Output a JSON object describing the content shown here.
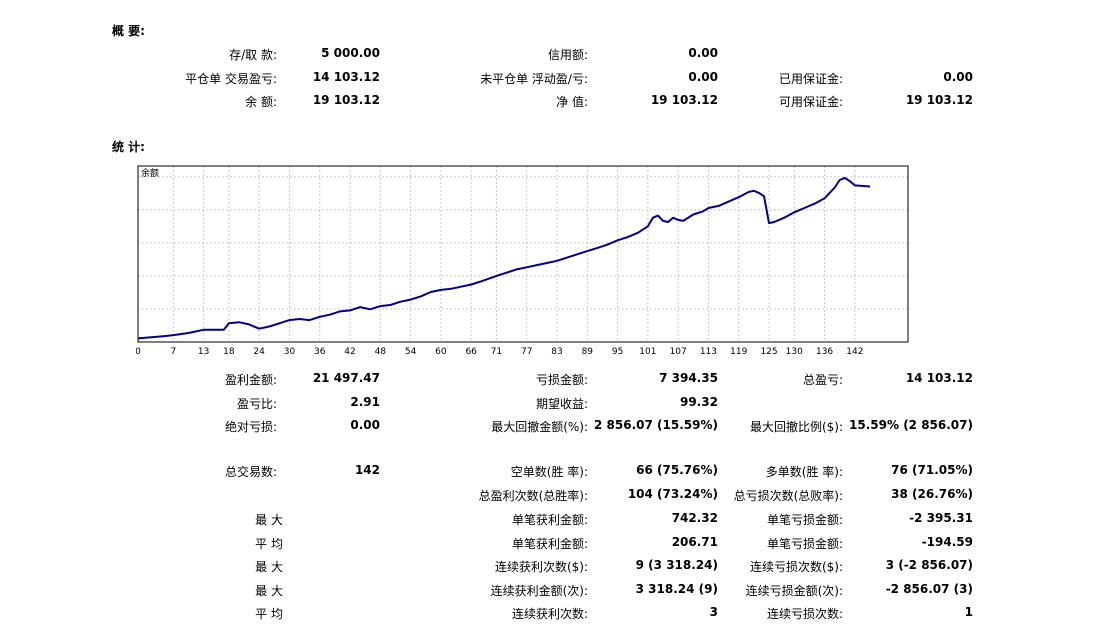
{
  "summary": {
    "title": "概 要:",
    "deposit_label": "存/取 款:",
    "deposit_value": "5 000.00",
    "credit_label": "信用额:",
    "credit_value": "0.00",
    "closed_pl_label": "平仓单 交易盈亏:",
    "closed_pl_value": "14 103.12",
    "floating_pl_label": "未平仓单 浮动盈/亏:",
    "floating_pl_value": "0.00",
    "margin_used_label": "已用保证金:",
    "margin_used_value": "0.00",
    "balance_label": "余 额:",
    "balance_value": "19 103.12",
    "equity_label": "净 值:",
    "equity_value": "19 103.12",
    "free_margin_label": "可用保证金:",
    "free_margin_value": "19 103.12"
  },
  "stats": {
    "title": "统 计:",
    "gross_profit_label": "盈利金额:",
    "gross_profit_value": "21 497.47",
    "gross_loss_label": "亏损金额:",
    "gross_loss_value": "7 394.35",
    "total_net_label": "总盈亏:",
    "total_net_value": "14 103.12",
    "profit_factor_label": "盈亏比:",
    "profit_factor_value": "2.91",
    "expected_payoff_label": "期望收益:",
    "expected_payoff_value": "99.32",
    "abs_drawdown_label": "绝对亏损:",
    "abs_drawdown_value": "0.00",
    "max_drawdown_label": "最大回撤金额(%):",
    "max_drawdown_value": "2 856.07 (15.59%)",
    "rel_drawdown_label": "最大回撤比例($):",
    "rel_drawdown_value": "15.59% (2 856.07)",
    "total_trades_label": "总交易数:",
    "total_trades_value": "142",
    "short_label": "空单数(胜 率):",
    "short_value": "66 (75.76%)",
    "long_label": "多单数(胜 率):",
    "long_value": "76 (71.05%)",
    "profit_trades_label": "总盈利次数(总胜率):",
    "profit_trades_value": "104 (73.24%)",
    "loss_trades_label": "总亏损次数(总败率):",
    "loss_trades_value": "38 (26.76%)",
    "largest_label": "最 大",
    "largest_profit_label": "单笔获利金额:",
    "largest_profit_value": "742.32",
    "largest_loss_label": "单笔亏损金额:",
    "largest_loss_value": "-2 395.31",
    "average_label": "平 均",
    "avg_profit_label": "单笔获利金额:",
    "avg_profit_value": "206.71",
    "avg_loss_label": "单笔亏损金额:",
    "avg_loss_value": "-194.59",
    "max_label": "最 大",
    "max_cons_wins_label": "连续获利次数($):",
    "max_cons_wins_value": "9 (3 318.24)",
    "max_cons_losses_label": "连续亏损次数($):",
    "max_cons_losses_value": "3 (-2 856.07)",
    "max2_label": "最 大",
    "max_cons_profit_label": "连续获利金额(次):",
    "max_cons_profit_value": "3 318.24 (9)",
    "max_cons_loss_label": "连续亏损金额(次):",
    "max_cons_loss_value": "-2 856.07 (3)",
    "average2_label": "平 均",
    "avg_cons_wins_label": "连续获利次数:",
    "avg_cons_wins_value": "3",
    "avg_cons_losses_label": "连续亏损次数:",
    "avg_cons_losses_value": "1"
  },
  "colors": {
    "line": "#00008b",
    "grid": "#c8c8c8",
    "frame": "#000000"
  },
  "chart_data": {
    "type": "line",
    "title": "余额",
    "xlabel": "",
    "ylabel": "",
    "grid": true,
    "xlim": [
      0,
      145
    ],
    "ylim": [
      4263,
      20600
    ],
    "x_ticks": [
      "0",
      "7",
      "13",
      "18",
      "24",
      "30",
      "36",
      "42",
      "48",
      "54",
      "60",
      "66",
      "71",
      "77",
      "83",
      "89",
      "95",
      "101",
      "107",
      "113",
      "119",
      "125",
      "130",
      "136",
      "142"
    ],
    "y_ticks": [
      "4263",
      "7329",
      "10395",
      "13461",
      "16527",
      "19593"
    ],
    "series": [
      {
        "x": [
          0,
          5,
          7,
          10,
          13,
          15,
          17,
          18,
          20,
          22,
          24,
          26,
          28,
          30,
          32,
          34,
          36,
          38,
          40,
          42,
          44,
          46,
          48,
          50,
          52,
          54,
          56,
          58,
          60,
          62,
          64,
          66,
          68,
          71,
          73,
          75,
          77,
          79,
          81,
          83,
          85,
          87,
          89,
          91,
          93,
          95,
          97,
          99,
          101,
          102,
          103,
          104,
          105,
          106,
          107,
          108,
          110,
          112,
          113,
          115,
          117,
          119,
          121,
          122,
          123,
          124,
          125,
          126,
          128,
          130,
          132,
          134,
          136,
          137,
          138,
          139,
          140,
          141,
          142,
          145
        ],
        "y": [
          4600,
          4800,
          4900,
          5100,
          5400,
          5400,
          5400,
          6000,
          6100,
          5900,
          5500,
          5700,
          6000,
          6300,
          6400,
          6300,
          6600,
          6800,
          7100,
          7200,
          7500,
          7300,
          7600,
          7700,
          8000,
          8200,
          8500,
          8900,
          9100,
          9200,
          9400,
          9600,
          9900,
          10400,
          10700,
          11000,
          11200,
          11400,
          11600,
          11800,
          12100,
          12400,
          12700,
          13000,
          13300,
          13700,
          14000,
          14400,
          15000,
          15800,
          16000,
          15500,
          15400,
          15800,
          15600,
          15500,
          16100,
          16400,
          16700,
          16900,
          17300,
          17700,
          18200,
          18300,
          18100,
          17800,
          15300,
          15400,
          15800,
          16300,
          16700,
          17100,
          17600,
          18100,
          18600,
          19300,
          19500,
          19200,
          18800,
          18700
        ]
      }
    ]
  }
}
